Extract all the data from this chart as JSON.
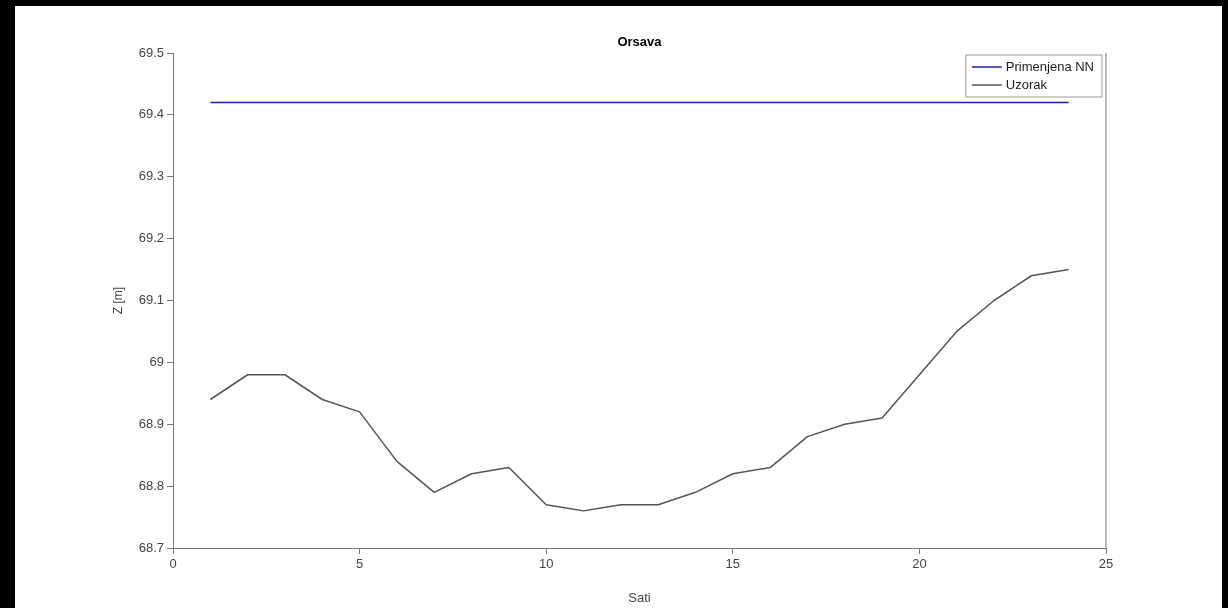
{
  "chart_data": {
    "type": "line",
    "title": "Orsava",
    "xlabel": "Sati",
    "ylabel": "Z [m]",
    "xlim": [
      0,
      25
    ],
    "xticks": [
      0,
      5,
      10,
      15,
      20,
      25
    ],
    "ylim": [
      68.7,
      69.5
    ],
    "yticks": [
      68.7,
      68.8,
      68.9,
      69,
      69.1,
      69.2,
      69.3,
      69.4,
      69.5
    ],
    "x": [
      1,
      2,
      3,
      4,
      5,
      6,
      7,
      8,
      9,
      10,
      11,
      12,
      13,
      14,
      15,
      16,
      17,
      18,
      19,
      20,
      21,
      22,
      23,
      24
    ],
    "series": [
      {
        "name": "Primenjena NN",
        "color": "#1f1fa8",
        "values": [
          69.42,
          69.42,
          69.42,
          69.42,
          69.42,
          69.42,
          69.42,
          69.42,
          69.42,
          69.42,
          69.42,
          69.42,
          69.42,
          69.42,
          69.42,
          69.42,
          69.42,
          69.42,
          69.42,
          69.42,
          69.42,
          69.42,
          69.42,
          69.42
        ]
      },
      {
        "name": "Uzorak",
        "color": "#555555",
        "values": [
          68.94,
          68.98,
          68.98,
          68.94,
          68.92,
          68.84,
          68.79,
          68.82,
          68.83,
          68.77,
          68.76,
          68.77,
          68.77,
          68.79,
          68.82,
          68.83,
          68.88,
          68.9,
          68.91,
          68.98,
          69.05,
          69.1,
          69.14,
          69.15
        ]
      }
    ],
    "grid": false,
    "legend": "top right",
    "marker": "none"
  }
}
